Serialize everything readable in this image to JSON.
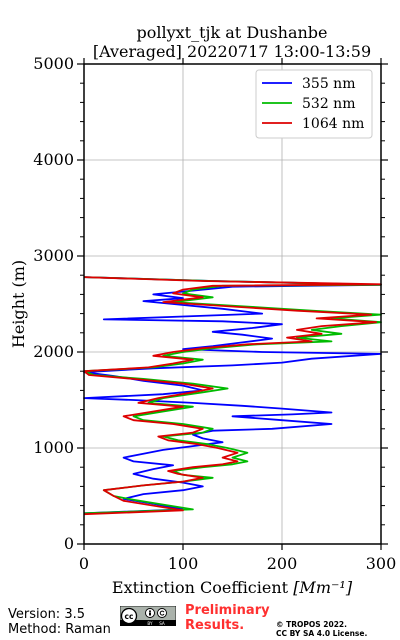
{
  "chart_data": {
    "type": "line",
    "title_line1": "pollyxt_tjk at Dushanbe",
    "title_line2": "[Averaged] 20220717 13:00-13:59",
    "xlabel": "Extinction Coefficient",
    "xlabel_unit": "[Mm⁻¹]",
    "ylabel": "Height (m)",
    "xlim": [
      0,
      300
    ],
    "ylim": [
      0,
      5000
    ],
    "xticks": [
      "0",
      "100",
      "200",
      "300"
    ],
    "yticks": [
      "0",
      "1000",
      "2000",
      "3000",
      "4000",
      "5000"
    ],
    "grid": true,
    "legend_position": "top-right",
    "series": [
      {
        "name": "355 nm",
        "color": "#0000ff",
        "points": [
          [
            0,
            320
          ],
          [
            100,
            360
          ],
          [
            70,
            420
          ],
          [
            40,
            470
          ],
          [
            60,
            520
          ],
          [
            100,
            560
          ],
          [
            120,
            600
          ],
          [
            100,
            640
          ],
          [
            70,
            680
          ],
          [
            50,
            730
          ],
          [
            70,
            780
          ],
          [
            90,
            820
          ],
          [
            50,
            860
          ],
          [
            40,
            900
          ],
          [
            60,
            940
          ],
          [
            80,
            980
          ],
          [
            110,
            1020
          ],
          [
            140,
            1060
          ],
          [
            120,
            1100
          ],
          [
            110,
            1140
          ],
          [
            130,
            1180
          ],
          [
            190,
            1200
          ],
          [
            250,
            1250
          ],
          [
            200,
            1290
          ],
          [
            150,
            1330
          ],
          [
            210,
            1350
          ],
          [
            250,
            1370
          ],
          [
            200,
            1410
          ],
          [
            160,
            1440
          ],
          [
            110,
            1470
          ],
          [
            50,
            1500
          ],
          [
            0,
            1520
          ],
          [
            80,
            1560
          ],
          [
            120,
            1600
          ],
          [
            100,
            1650
          ],
          [
            60,
            1700
          ],
          [
            30,
            1750
          ],
          [
            0,
            1790
          ],
          [
            70,
            1830
          ],
          [
            150,
            1860
          ],
          [
            200,
            1890
          ],
          [
            230,
            1930
          ],
          [
            300,
            1980
          ],
          [
            180,
            2000
          ],
          [
            100,
            2030
          ],
          [
            130,
            2060
          ],
          [
            160,
            2100
          ],
          [
            190,
            2140
          ],
          [
            160,
            2180
          ],
          [
            130,
            2210
          ],
          [
            170,
            2250
          ],
          [
            200,
            2290
          ],
          [
            140,
            2320
          ],
          [
            20,
            2340
          ],
          [
            100,
            2370
          ],
          [
            180,
            2400
          ],
          [
            140,
            2450
          ],
          [
            90,
            2500
          ],
          [
            60,
            2530
          ],
          [
            100,
            2560
          ],
          [
            70,
            2600
          ],
          [
            110,
            2640
          ],
          [
            150,
            2680
          ],
          [
            300,
            2700
          ],
          [
            130,
            2740
          ],
          [
            0,
            2780
          ]
        ]
      },
      {
        "name": "532 nm",
        "color": "#00bb00",
        "points": [
          [
            0,
            320
          ],
          [
            110,
            360
          ],
          [
            80,
            410
          ],
          [
            50,
            460
          ],
          [
            30,
            500
          ],
          [
            20,
            560
          ],
          [
            60,
            610
          ],
          [
            100,
            650
          ],
          [
            130,
            690
          ],
          [
            100,
            720
          ],
          [
            90,
            760
          ],
          [
            120,
            800
          ],
          [
            150,
            830
          ],
          [
            165,
            860
          ],
          [
            150,
            900
          ],
          [
            165,
            950
          ],
          [
            145,
            1000
          ],
          [
            125,
            1040
          ],
          [
            95,
            1080
          ],
          [
            80,
            1120
          ],
          [
            120,
            1160
          ],
          [
            130,
            1200
          ],
          [
            100,
            1250
          ],
          [
            60,
            1290
          ],
          [
            50,
            1330
          ],
          [
            80,
            1380
          ],
          [
            110,
            1430
          ],
          [
            65,
            1470
          ],
          [
            80,
            1520
          ],
          [
            120,
            1580
          ],
          [
            145,
            1620
          ],
          [
            110,
            1670
          ],
          [
            60,
            1720
          ],
          [
            10,
            1760
          ],
          [
            0,
            1800
          ],
          [
            70,
            1840
          ],
          [
            100,
            1880
          ],
          [
            120,
            1920
          ],
          [
            80,
            1960
          ],
          [
            100,
            2000
          ],
          [
            130,
            2040
          ],
          [
            175,
            2080
          ],
          [
            250,
            2110
          ],
          [
            215,
            2150
          ],
          [
            260,
            2190
          ],
          [
            230,
            2230
          ],
          [
            260,
            2270
          ],
          [
            300,
            2310
          ],
          [
            250,
            2350
          ],
          [
            300,
            2390
          ],
          [
            230,
            2430
          ],
          [
            170,
            2470
          ],
          [
            90,
            2520
          ],
          [
            130,
            2570
          ],
          [
            100,
            2610
          ],
          [
            110,
            2650
          ],
          [
            140,
            2690
          ],
          [
            300,
            2700
          ],
          [
            130,
            2740
          ],
          [
            0,
            2780
          ]
        ]
      },
      {
        "name": "1064 nm",
        "color": "#dd0000",
        "points": [
          [
            0,
            310
          ],
          [
            100,
            350
          ],
          [
            70,
            400
          ],
          [
            40,
            450
          ],
          [
            30,
            500
          ],
          [
            20,
            560
          ],
          [
            60,
            610
          ],
          [
            100,
            650
          ],
          [
            120,
            690
          ],
          [
            95,
            730
          ],
          [
            85,
            760
          ],
          [
            110,
            800
          ],
          [
            140,
            830
          ],
          [
            155,
            860
          ],
          [
            140,
            900
          ],
          [
            155,
            950
          ],
          [
            135,
            1000
          ],
          [
            115,
            1040
          ],
          [
            85,
            1080
          ],
          [
            75,
            1120
          ],
          [
            110,
            1160
          ],
          [
            120,
            1200
          ],
          [
            90,
            1250
          ],
          [
            50,
            1290
          ],
          [
            40,
            1330
          ],
          [
            70,
            1380
          ],
          [
            100,
            1430
          ],
          [
            55,
            1470
          ],
          [
            75,
            1520
          ],
          [
            110,
            1580
          ],
          [
            130,
            1620
          ],
          [
            100,
            1670
          ],
          [
            50,
            1720
          ],
          [
            5,
            1760
          ],
          [
            0,
            1800
          ],
          [
            65,
            1840
          ],
          [
            90,
            1880
          ],
          [
            110,
            1920
          ],
          [
            70,
            1960
          ],
          [
            90,
            2000
          ],
          [
            120,
            2040
          ],
          [
            165,
            2080
          ],
          [
            230,
            2110
          ],
          [
            205,
            2150
          ],
          [
            240,
            2190
          ],
          [
            215,
            2230
          ],
          [
            240,
            2270
          ],
          [
            295,
            2310
          ],
          [
            235,
            2350
          ],
          [
            290,
            2390
          ],
          [
            215,
            2430
          ],
          [
            155,
            2470
          ],
          [
            80,
            2520
          ],
          [
            120,
            2570
          ],
          [
            90,
            2610
          ],
          [
            100,
            2650
          ],
          [
            130,
            2690
          ],
          [
            300,
            2705
          ],
          [
            120,
            2740
          ],
          [
            0,
            2780
          ]
        ]
      }
    ]
  },
  "footer": {
    "version": "Version: 3.5",
    "method": "Method: Raman",
    "preliminary_line1": "Preliminary",
    "preliminary_line2": "Results.",
    "copyright_line1": "© TROPOS 2022.",
    "copyright_line2": "CC BY SA 4.0 License.",
    "license_badge_text": "cc",
    "license_badge_by": "BY",
    "license_badge_sa": "SA"
  }
}
